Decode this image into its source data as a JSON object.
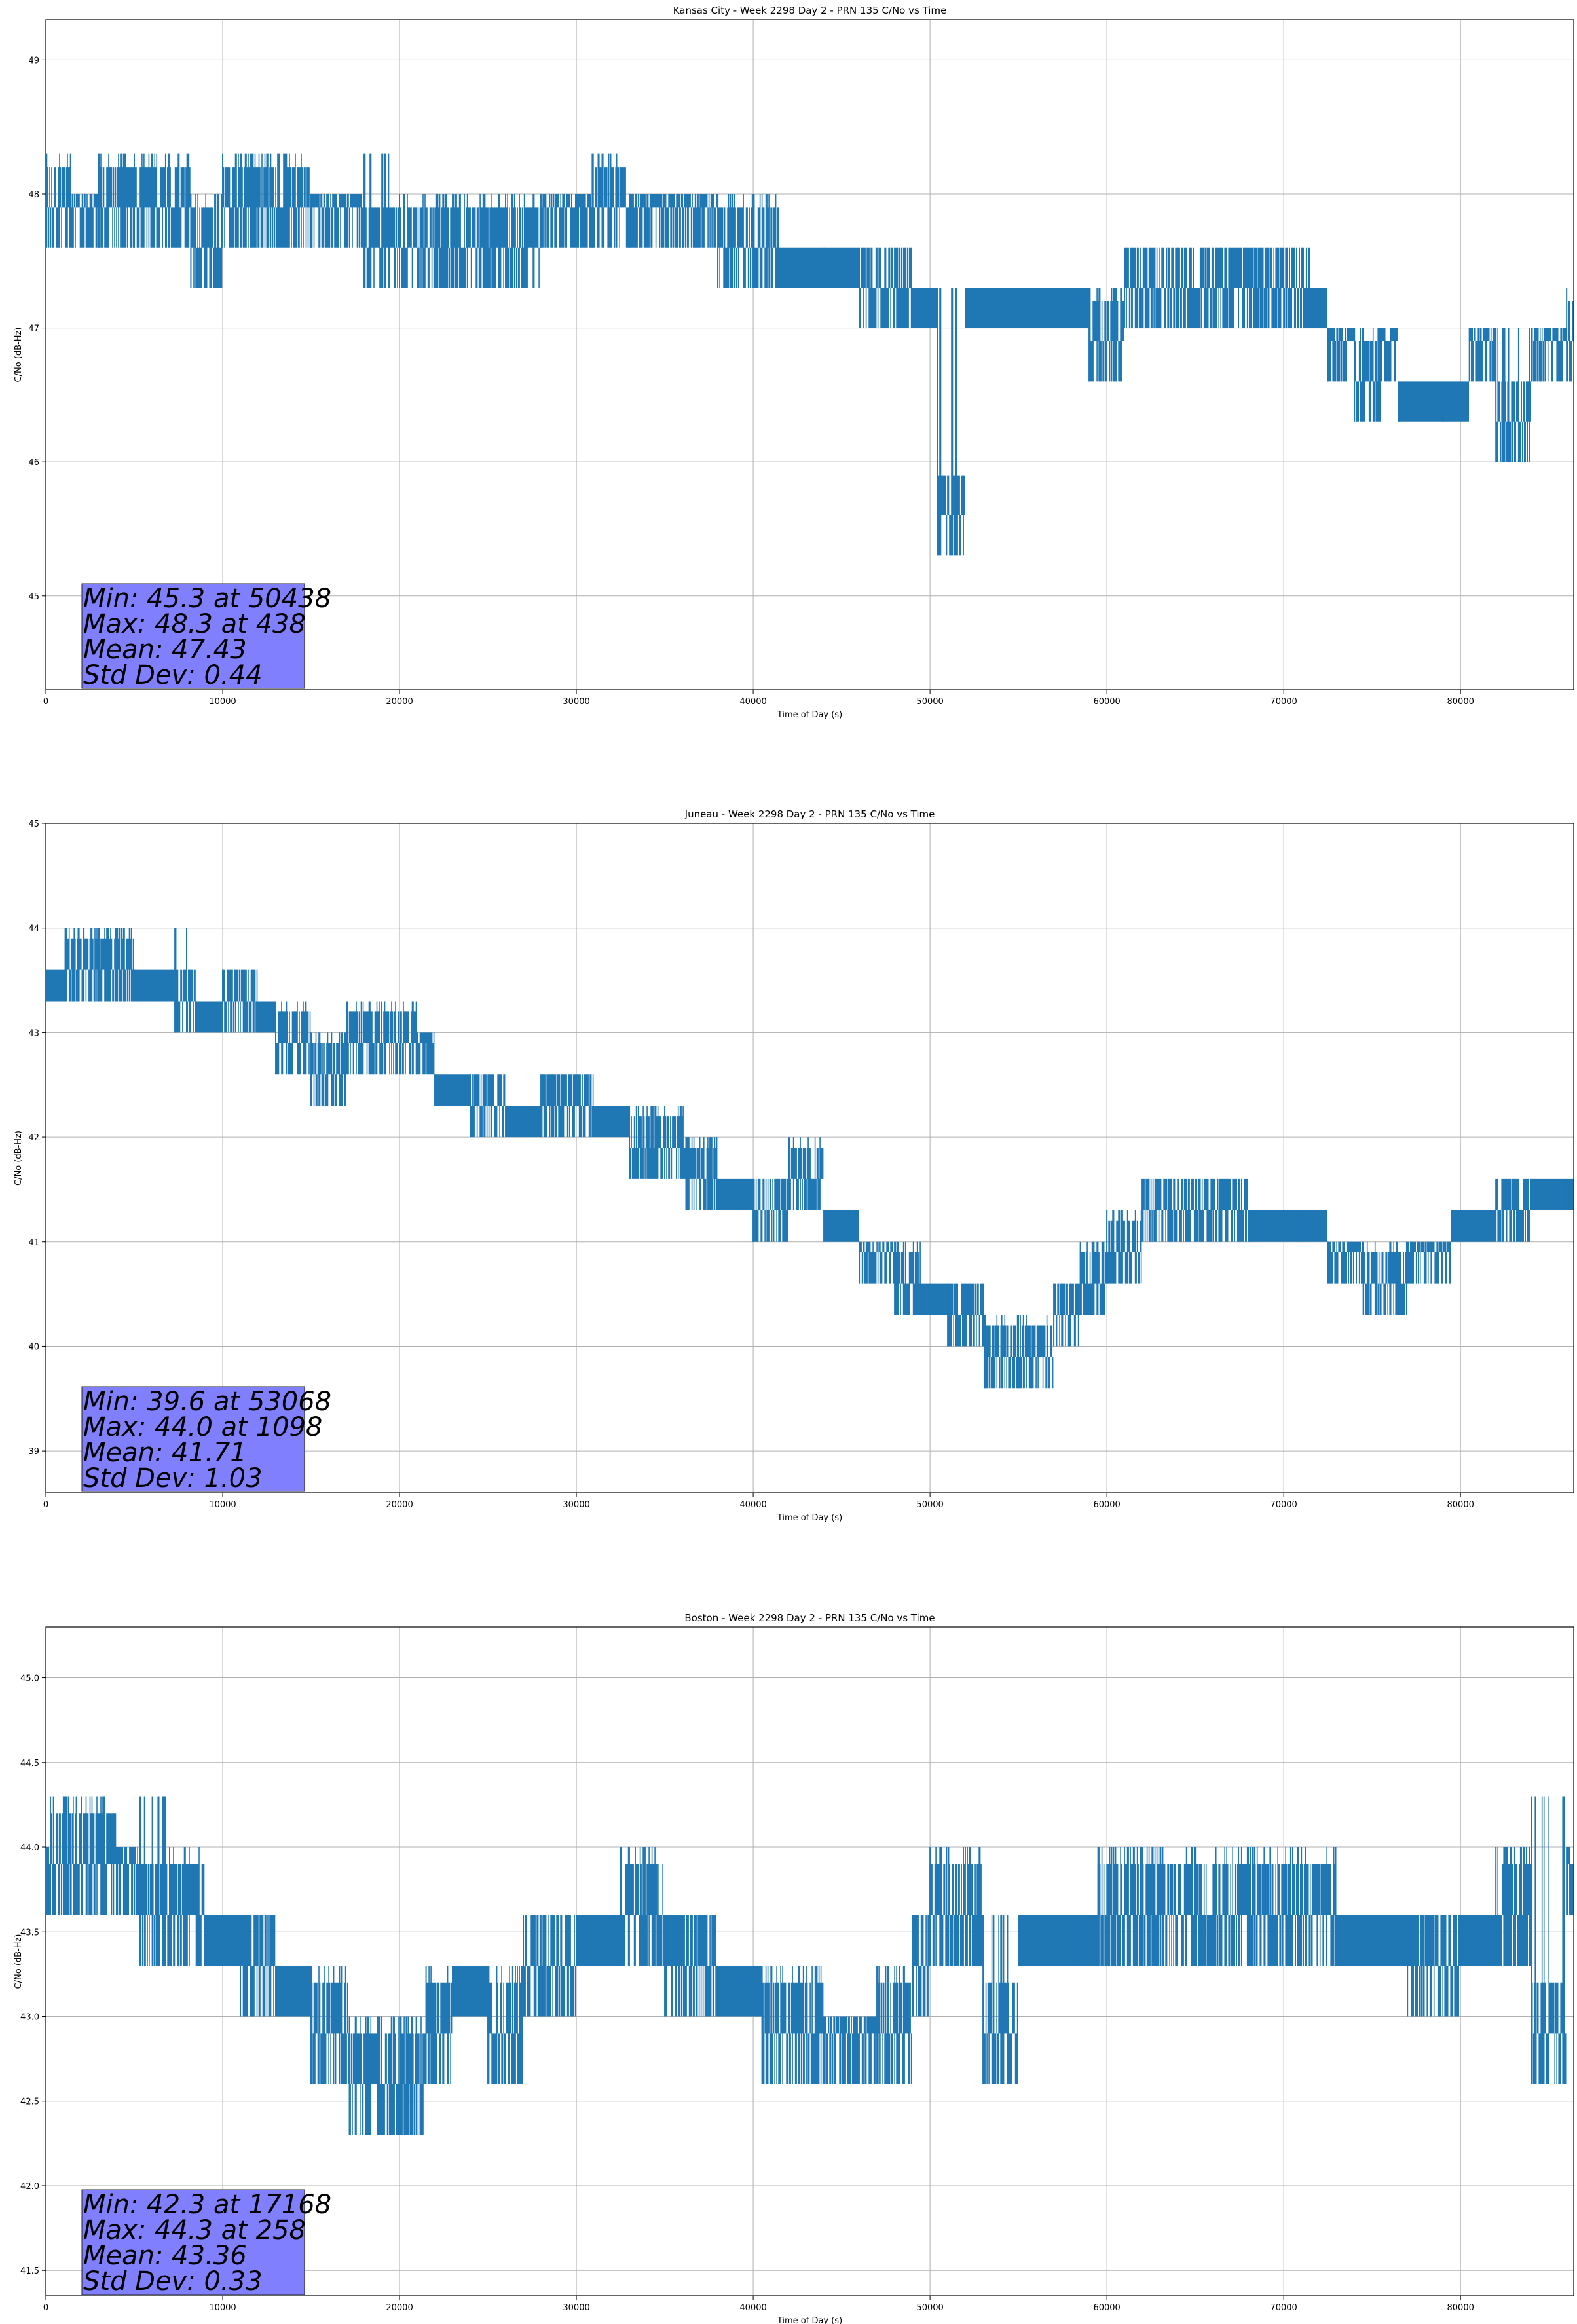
{
  "theme": {
    "line_color": "#1f77b4",
    "stats_box_color": "#8080ff"
  },
  "chart_data": [
    {
      "type": "line",
      "title": "Kansas City - Week 2298 Day 2 - PRN 135 C/No vs Time",
      "xlabel": "Time of Day (s)",
      "ylabel": "C/No (dB-Hz)",
      "xlim": [
        0,
        86400
      ],
      "ylim": [
        44.3,
        49.3
      ],
      "xticks": [
        0,
        10000,
        20000,
        30000,
        40000,
        50000,
        60000,
        70000,
        80000
      ],
      "yticks": [
        45,
        46,
        47,
        48,
        49
      ],
      "ytick_labels": [
        "45",
        "46",
        "47",
        "48",
        "49"
      ],
      "grid": true,
      "series": [
        {
          "values": [
            {
              "x": 0,
              "lo": 47.6,
              "hi": 48.3
            },
            {
              "x": 1500,
              "lo": 47.6,
              "hi": 48.0
            },
            {
              "x": 3000,
              "lo": 47.6,
              "hi": 48.3
            },
            {
              "x": 5000,
              "lo": 47.6,
              "hi": 48.3
            },
            {
              "x": 8200,
              "lo": 47.3,
              "hi": 48.0
            },
            {
              "x": 10000,
              "lo": 47.6,
              "hi": 48.3
            },
            {
              "x": 12500,
              "lo": 47.6,
              "hi": 48.3
            },
            {
              "x": 15000,
              "lo": 47.6,
              "hi": 48.0
            },
            {
              "x": 18000,
              "lo": 47.3,
              "hi": 48.3
            },
            {
              "x": 20000,
              "lo": 47.3,
              "hi": 48.0
            },
            {
              "x": 23000,
              "lo": 47.3,
              "hi": 48.0
            },
            {
              "x": 26000,
              "lo": 47.3,
              "hi": 48.0
            },
            {
              "x": 28000,
              "lo": 47.6,
              "hi": 48.0
            },
            {
              "x": 30900,
              "lo": 47.6,
              "hi": 48.3
            },
            {
              "x": 33000,
              "lo": 47.6,
              "hi": 48.0
            },
            {
              "x": 36000,
              "lo": 47.6,
              "hi": 48.0
            },
            {
              "x": 38000,
              "lo": 47.3,
              "hi": 48.0
            },
            {
              "x": 40000,
              "lo": 47.3,
              "hi": 48.0
            },
            {
              "x": 41500,
              "lo": 47.3,
              "hi": 47.6
            },
            {
              "x": 44000,
              "lo": 47.3,
              "hi": 47.6
            },
            {
              "x": 46000,
              "lo": 47.0,
              "hi": 47.6
            },
            {
              "x": 48000,
              "lo": 47.0,
              "hi": 47.6
            },
            {
              "x": 49000,
              "lo": 47.0,
              "hi": 47.3
            },
            {
              "x": 50438,
              "lo": 45.3,
              "hi": 47.3
            },
            {
              "x": 52000,
              "lo": 47.0,
              "hi": 47.3
            },
            {
              "x": 55000,
              "lo": 47.0,
              "hi": 47.3
            },
            {
              "x": 59000,
              "lo": 46.6,
              "hi": 47.3
            },
            {
              "x": 61000,
              "lo": 47.0,
              "hi": 47.6
            },
            {
              "x": 64000,
              "lo": 47.0,
              "hi": 47.6
            },
            {
              "x": 67000,
              "lo": 47.0,
              "hi": 47.6
            },
            {
              "x": 70000,
              "lo": 47.0,
              "hi": 47.6
            },
            {
              "x": 71500,
              "lo": 47.0,
              "hi": 47.3
            },
            {
              "x": 72500,
              "lo": 46.6,
              "hi": 47.0
            },
            {
              "x": 74000,
              "lo": 46.3,
              "hi": 47.0
            },
            {
              "x": 75500,
              "lo": 46.6,
              "hi": 47.0
            },
            {
              "x": 76500,
              "lo": 46.3,
              "hi": 46.6
            },
            {
              "x": 79000,
              "lo": 46.3,
              "hi": 46.6
            },
            {
              "x": 80500,
              "lo": 46.6,
              "hi": 47.0
            },
            {
              "x": 82000,
              "lo": 46.0,
              "hi": 47.0
            },
            {
              "x": 84000,
              "lo": 46.6,
              "hi": 47.0
            },
            {
              "x": 86000,
              "lo": 46.6,
              "hi": 47.3
            }
          ]
        }
      ],
      "stats": [
        "Min: 45.3 at 50438",
        "Max: 48.3 at 438",
        "Mean: 47.43",
        "Std Dev: 0.44"
      ]
    },
    {
      "type": "line",
      "title": "Juneau - Week 2298 Day 2 - PRN 135 C/No vs Time",
      "xlabel": "Time of Day (s)",
      "ylabel": "C/No (dB-Hz)",
      "xlim": [
        0,
        86400
      ],
      "ylim": [
        38.6,
        45.0
      ],
      "xticks": [
        0,
        10000,
        20000,
        30000,
        40000,
        50000,
        60000,
        70000,
        80000
      ],
      "yticks": [
        39,
        40,
        41,
        42,
        43,
        44,
        45
      ],
      "ytick_labels": [
        "39",
        "40",
        "41",
        "42",
        "43",
        "44",
        "45"
      ],
      "grid": true,
      "series": [
        {
          "values": [
            {
              "x": 0,
              "lo": 43.3,
              "hi": 43.6
            },
            {
              "x": 1098,
              "lo": 43.3,
              "hi": 44.0
            },
            {
              "x": 3000,
              "lo": 43.3,
              "hi": 43.6
            },
            {
              "x": 3000,
              "lo": 43.3,
              "hi": 44.0
            },
            {
              "x": 5000,
              "lo": 43.3,
              "hi": 43.6
            },
            {
              "x": 7300,
              "lo": 43.0,
              "hi": 44.0
            },
            {
              "x": 8500,
              "lo": 43.0,
              "hi": 43.3
            },
            {
              "x": 10000,
              "lo": 43.0,
              "hi": 43.6
            },
            {
              "x": 12000,
              "lo": 43.0,
              "hi": 43.3
            },
            {
              "x": 13000,
              "lo": 42.6,
              "hi": 43.3
            },
            {
              "x": 15000,
              "lo": 42.3,
              "hi": 43.0
            },
            {
              "x": 17000,
              "lo": 42.6,
              "hi": 43.3
            },
            {
              "x": 19000,
              "lo": 42.6,
              "hi": 43.3
            },
            {
              "x": 21000,
              "lo": 42.6,
              "hi": 43.0
            },
            {
              "x": 22000,
              "lo": 42.3,
              "hi": 42.6
            },
            {
              "x": 24000,
              "lo": 42.0,
              "hi": 42.6
            },
            {
              "x": 26000,
              "lo": 42.0,
              "hi": 42.3
            },
            {
              "x": 28000,
              "lo": 42.0,
              "hi": 42.6
            },
            {
              "x": 31000,
              "lo": 42.0,
              "hi": 42.3
            },
            {
              "x": 33000,
              "lo": 41.6,
              "hi": 42.3
            },
            {
              "x": 35000,
              "lo": 41.6,
              "hi": 42.3
            },
            {
              "x": 36200,
              "lo": 41.3,
              "hi": 42.0
            },
            {
              "x": 38000,
              "lo": 41.3,
              "hi": 41.6
            },
            {
              "x": 40000,
              "lo": 41.0,
              "hi": 41.6
            },
            {
              "x": 42000,
              "lo": 41.3,
              "hi": 42.0
            },
            {
              "x": 44000,
              "lo": 41.0,
              "hi": 41.3
            },
            {
              "x": 46000,
              "lo": 40.6,
              "hi": 41.0
            },
            {
              "x": 48000,
              "lo": 40.3,
              "hi": 41.0
            },
            {
              "x": 49500,
              "lo": 40.3,
              "hi": 40.6
            },
            {
              "x": 51000,
              "lo": 40.0,
              "hi": 40.6
            },
            {
              "x": 53068,
              "lo": 39.6,
              "hi": 40.3
            },
            {
              "x": 55000,
              "lo": 39.6,
              "hi": 40.3
            },
            {
              "x": 57000,
              "lo": 40.0,
              "hi": 40.6
            },
            {
              "x": 58500,
              "lo": 40.3,
              "hi": 41.0
            },
            {
              "x": 60000,
              "lo": 40.6,
              "hi": 41.3
            },
            {
              "x": 62000,
              "lo": 41.0,
              "hi": 41.6
            },
            {
              "x": 65000,
              "lo": 41.0,
              "hi": 41.6
            },
            {
              "x": 68000,
              "lo": 41.0,
              "hi": 41.3
            },
            {
              "x": 71000,
              "lo": 41.0,
              "hi": 41.3
            },
            {
              "x": 72500,
              "lo": 40.6,
              "hi": 41.0
            },
            {
              "x": 74500,
              "lo": 40.3,
              "hi": 41.0
            },
            {
              "x": 77000,
              "lo": 40.6,
              "hi": 41.0
            },
            {
              "x": 79500,
              "lo": 41.0,
              "hi": 41.3
            },
            {
              "x": 82000,
              "lo": 41.0,
              "hi": 41.6
            },
            {
              "x": 84000,
              "lo": 41.3,
              "hi": 41.6
            },
            {
              "x": 86000,
              "lo": 41.3,
              "hi": 41.6
            }
          ]
        }
      ],
      "stats": [
        "Min: 39.6 at 53068",
        "Max: 44.0 at 1098",
        "Mean: 41.71",
        "Std Dev: 1.03"
      ]
    },
    {
      "type": "line",
      "title": "Boston - Week 2298 Day 2 - PRN 135 C/No vs Time",
      "xlabel": "Time of Day (s)",
      "ylabel": "C/No (dB-Hz)",
      "xlim": [
        0,
        86400
      ],
      "ylim": [
        41.35,
        45.3
      ],
      "xticks": [
        0,
        10000,
        20000,
        30000,
        40000,
        50000,
        60000,
        70000,
        80000
      ],
      "yticks": [
        41.5,
        42.0,
        42.5,
        43.0,
        43.5,
        44.0,
        44.5,
        45.0
      ],
      "ytick_labels": [
        "41.5",
        "42.0",
        "42.5",
        "43.0",
        "43.5",
        "44.0",
        "44.5",
        "45.0"
      ],
      "grid": true,
      "series": [
        {
          "values": [
            {
              "x": 0,
              "lo": 43.6,
              "hi": 44.0
            },
            {
              "x": 258,
              "lo": 43.6,
              "hi": 44.3
            },
            {
              "x": 2000,
              "lo": 43.6,
              "hi": 44.3
            },
            {
              "x": 4000,
              "lo": 43.6,
              "hi": 44.0
            },
            {
              "x": 5300,
              "lo": 43.3,
              "hi": 44.3
            },
            {
              "x": 7000,
              "lo": 43.3,
              "hi": 44.0
            },
            {
              "x": 9000,
              "lo": 43.3,
              "hi": 43.6
            },
            {
              "x": 11000,
              "lo": 43.0,
              "hi": 43.6
            },
            {
              "x": 13000,
              "lo": 43.0,
              "hi": 43.3
            },
            {
              "x": 15000,
              "lo": 42.6,
              "hi": 43.3
            },
            {
              "x": 17168,
              "lo": 42.3,
              "hi": 43.0
            },
            {
              "x": 19700,
              "lo": 42.3,
              "hi": 43.0
            },
            {
              "x": 21500,
              "lo": 42.6,
              "hi": 43.3
            },
            {
              "x": 23000,
              "lo": 43.0,
              "hi": 43.3
            },
            {
              "x": 25000,
              "lo": 42.6,
              "hi": 43.3
            },
            {
              "x": 27000,
              "lo": 43.0,
              "hi": 43.6
            },
            {
              "x": 30000,
              "lo": 43.3,
              "hi": 43.6
            },
            {
              "x": 32500,
              "lo": 43.3,
              "hi": 44.0
            },
            {
              "x": 35000,
              "lo": 43.0,
              "hi": 43.6
            },
            {
              "x": 38000,
              "lo": 43.0,
              "hi": 43.3
            },
            {
              "x": 40500,
              "lo": 42.6,
              "hi": 43.3
            },
            {
              "x": 44000,
              "lo": 42.6,
              "hi": 43.0
            },
            {
              "x": 47000,
              "lo": 42.6,
              "hi": 43.3
            },
            {
              "x": 49000,
              "lo": 43.0,
              "hi": 43.6
            },
            {
              "x": 50000,
              "lo": 43.3,
              "hi": 44.0
            },
            {
              "x": 53000,
              "lo": 42.6,
              "hi": 43.6
            },
            {
              "x": 55000,
              "lo": 43.3,
              "hi": 43.6
            },
            {
              "x": 58000,
              "lo": 43.3,
              "hi": 43.6
            },
            {
              "x": 59500,
              "lo": 43.3,
              "hi": 44.0
            },
            {
              "x": 62000,
              "lo": 43.3,
              "hi": 44.0
            },
            {
              "x": 65000,
              "lo": 43.3,
              "hi": 44.0
            },
            {
              "x": 68000,
              "lo": 43.3,
              "hi": 44.0
            },
            {
              "x": 71000,
              "lo": 43.3,
              "hi": 44.0
            },
            {
              "x": 73000,
              "lo": 43.3,
              "hi": 43.6
            },
            {
              "x": 77000,
              "lo": 43.0,
              "hi": 43.6
            },
            {
              "x": 80000,
              "lo": 43.3,
              "hi": 43.6
            },
            {
              "x": 82000,
              "lo": 43.3,
              "hi": 44.0
            },
            {
              "x": 84000,
              "lo": 42.6,
              "hi": 44.3
            },
            {
              "x": 86000,
              "lo": 43.6,
              "hi": 44.0
            }
          ]
        }
      ],
      "stats": [
        "Min: 42.3 at 17168",
        "Max: 44.3 at 258",
        "Mean: 43.36",
        "Std Dev: 0.33"
      ]
    }
  ]
}
